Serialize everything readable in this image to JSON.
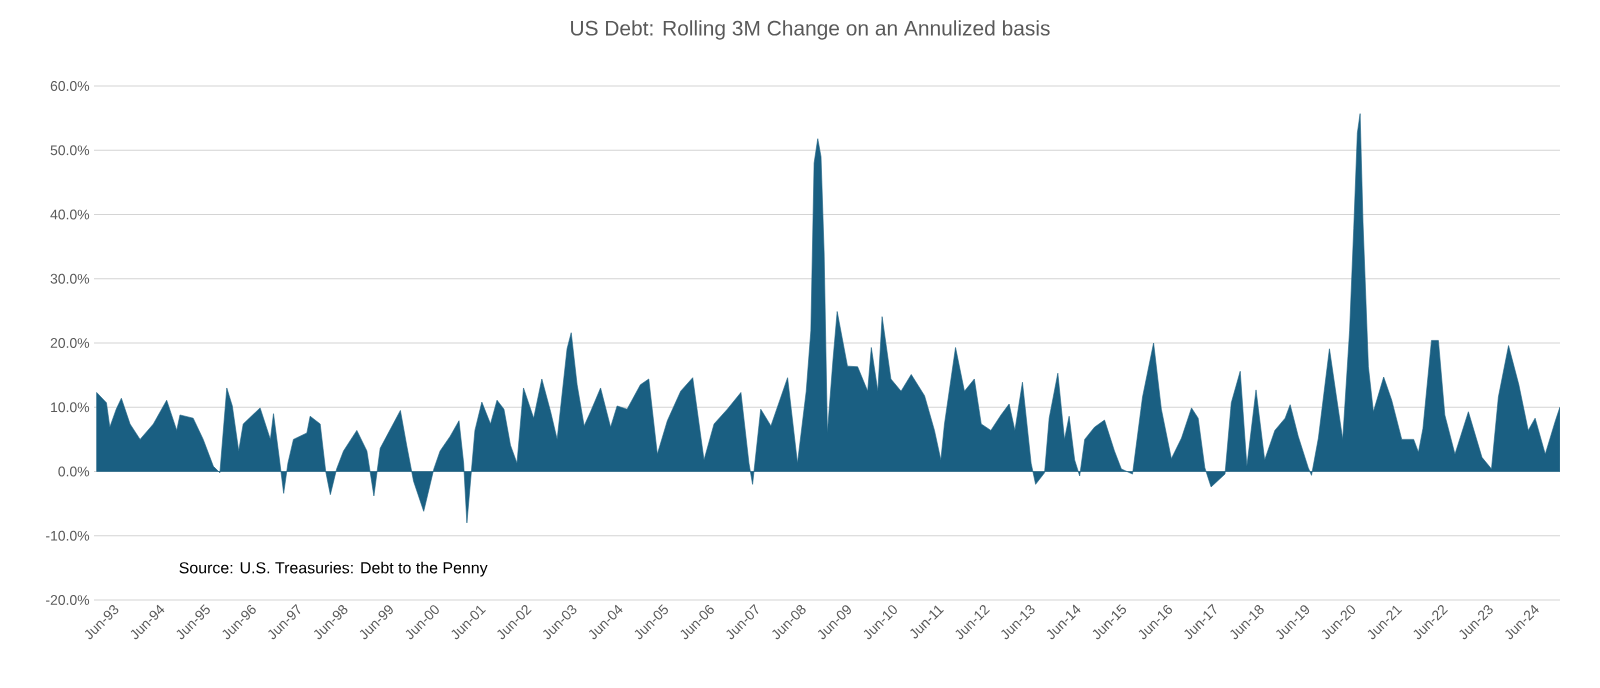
{
  "chart_data": {
    "type": "area",
    "title": "US Debt: Rolling 3M Change on an Annulized basis",
    "annotations": [
      "Source: U.S. Treasuries: Debt to the Penny"
    ],
    "color": "#1a5f82",
    "grid": "y",
    "xlim": [
      "1993-01-01",
      "2025-01-01"
    ],
    "ylim": [
      -20,
      60
    ],
    "xticks": [
      {
        "value": "1993-06-01",
        "label": "Jun-93"
      },
      {
        "value": "1994-06-01",
        "label": "Jun-94"
      },
      {
        "value": "1995-06-01",
        "label": "Jun-95"
      },
      {
        "value": "1996-06-01",
        "label": "Jun-96"
      },
      {
        "value": "1997-06-01",
        "label": "Jun-97"
      },
      {
        "value": "1998-06-01",
        "label": "Jun-98"
      },
      {
        "value": "1999-06-01",
        "label": "Jun-99"
      },
      {
        "value": "2000-06-01",
        "label": "Jun-00"
      },
      {
        "value": "2001-06-01",
        "label": "Jun-01"
      },
      {
        "value": "2002-06-01",
        "label": "Jun-02"
      },
      {
        "value": "2003-06-01",
        "label": "Jun-03"
      },
      {
        "value": "2004-06-01",
        "label": "Jun-04"
      },
      {
        "value": "2005-06-01",
        "label": "Jun-05"
      },
      {
        "value": "2006-06-01",
        "label": "Jun-06"
      },
      {
        "value": "2007-06-01",
        "label": "Jun-07"
      },
      {
        "value": "2008-06-01",
        "label": "Jun-08"
      },
      {
        "value": "2009-06-01",
        "label": "Jun-09"
      },
      {
        "value": "2010-06-01",
        "label": "Jun-10"
      },
      {
        "value": "2011-06-01",
        "label": "Jun-11"
      },
      {
        "value": "2012-06-01",
        "label": "Jun-12"
      },
      {
        "value": "2013-06-01",
        "label": "Jun-13"
      },
      {
        "value": "2014-06-01",
        "label": "Jun-14"
      },
      {
        "value": "2015-06-01",
        "label": "Jun-15"
      },
      {
        "value": "2016-06-01",
        "label": "Jun-16"
      },
      {
        "value": "2017-06-01",
        "label": "Jun-17"
      },
      {
        "value": "2018-06-01",
        "label": "Jun-18"
      },
      {
        "value": "2019-06-01",
        "label": "Jun-19"
      },
      {
        "value": "2020-06-01",
        "label": "Jun-20"
      },
      {
        "value": "2021-06-01",
        "label": "Jun-21"
      },
      {
        "value": "2022-06-01",
        "label": "Jun-22"
      },
      {
        "value": "2023-06-01",
        "label": "Jun-23"
      },
      {
        "value": "2024-06-01",
        "label": "Jun-24"
      }
    ],
    "yticks": [
      {
        "value": -20,
        "label": "-20.0%"
      },
      {
        "value": -10,
        "label": "-10.0%"
      },
      {
        "value": 0,
        "label": "0.0%"
      },
      {
        "value": 10,
        "label": "10.0%"
      },
      {
        "value": 20,
        "label": "20.0%"
      },
      {
        "value": 30,
        "label": "30.0%"
      },
      {
        "value": 40,
        "label": "40.0%"
      },
      {
        "value": 50,
        "label": "50.0%"
      },
      {
        "value": 60,
        "label": "60.0%"
      }
    ],
    "x": [
      "1993-01-22",
      "1993-04-10",
      "1993-05-07",
      "1993-06-27",
      "1993-08-07",
      "1993-10-15",
      "1994-01-03",
      "1994-04-19",
      "1994-08-03",
      "1994-10-22",
      "1994-11-17",
      "1995-03-02",
      "1995-05-21",
      "1995-08-10",
      "1995-10-01",
      "1995-11-25",
      "1996-01-08",
      "1996-02-28",
      "1996-04-04",
      "1996-08-17",
      "1996-11-07",
      "1996-12-02",
      "1997-01-15",
      "1997-02-21",
      "1997-03-27",
      "1997-05-10",
      "1997-08-25",
      "1997-09-20",
      "1997-12-09",
      "1998-01-22",
      "1998-02-28",
      "1998-04-19",
      "1998-06-13",
      "1998-09-27",
      "1998-12-16",
      "1999-02-10",
      "1999-04-01",
      "1999-09-09",
      "1999-10-29",
      "1999-12-23",
      "2000-03-13",
      "2000-06-02",
      "2000-07-22",
      "2000-10-11",
      "2000-12-20",
      "2001-01-26",
      "2001-02-21",
      "2001-04-26",
      "2001-06-20",
      "2001-08-28",
      "2001-10-19",
      "2001-12-13",
      "2002-02-03",
      "2002-03-27",
      "2002-05-18",
      "2002-08-07",
      "2002-10-11",
      "2002-12-20",
      "2003-02-10",
      "2003-04-30",
      "2003-06-02",
      "2003-07-19",
      "2003-09-13",
      "2003-11-03",
      "2004-01-22",
      "2004-04-11",
      "2004-06-02",
      "2004-08-21",
      "2004-12-05",
      "2005-02-10",
      "2005-04-19",
      "2005-07-08",
      "2005-10-22",
      "2006-01-26",
      "2006-04-26",
      "2006-07-15",
      "2006-10-29",
      "2007-02-14",
      "2007-04-19",
      "2007-05-18",
      "2007-07-22",
      "2007-10-11",
      "2008-02-21",
      "2008-05-10",
      "2008-07-19",
      "2008-08-25",
      "2008-09-20",
      "2008-10-19",
      "2008-11-14",
      "2008-12-09",
      "2009-01-04",
      "2009-02-17",
      "2009-03-23",
      "2009-06-13",
      "2009-09-02",
      "2009-11-21",
      "2009-12-20",
      "2010-02-10",
      "2010-03-16",
      "2010-05-25",
      "2010-08-14",
      "2010-11-03",
      "2011-02-17",
      "2011-05-07",
      "2011-06-27",
      "2011-07-26",
      "2011-10-22",
      "2012-01-01",
      "2012-03-20",
      "2012-05-14",
      "2012-07-30",
      "2012-10-19",
      "2012-12-23",
      "2013-02-07",
      "2013-04-08",
      "2013-06-16",
      "2013-07-22",
      "2013-10-01",
      "2013-11-07",
      "2014-01-15",
      "2014-03-09",
      "2014-04-15",
      "2014-05-29",
      "2014-07-08",
      "2014-08-17",
      "2014-11-03",
      "2015-01-22",
      "2015-04-11",
      "2015-06-05",
      "2015-09-02",
      "2015-11-21",
      "2016-02-17",
      "2016-04-19",
      "2016-07-08",
      "2016-09-27",
      "2016-12-16",
      "2017-02-07",
      "2017-04-01",
      "2017-05-21",
      "2017-09-09",
      "2017-10-29",
      "2018-01-08",
      "2018-03-02",
      "2018-05-14",
      "2018-07-22",
      "2018-10-11",
      "2019-01-01",
      "2019-02-10",
      "2019-04-15",
      "2019-07-04",
      "2019-07-30",
      "2019-09-23",
      "2019-12-20",
      "2020-02-14",
      "2020-04-04",
      "2020-05-29",
      "2020-07-01",
      "2020-07-30",
      "2020-08-21",
      "2020-09-13",
      "2020-10-26",
      "2020-12-05",
      "2021-02-25",
      "2021-04-30",
      "2021-07-19",
      "2021-10-22",
      "2021-11-29",
      "2022-01-04",
      "2022-03-13",
      "2022-05-07",
      "2022-06-27",
      "2022-09-16",
      "2023-01-01",
      "2023-04-19",
      "2023-07-04",
      "2023-08-28",
      "2023-11-17",
      "2024-02-07",
      "2024-04-22",
      "2024-06-16",
      "2024-09-05",
      "2024-11-25",
      "2024-12-31"
    ],
    "values": [
      12.3,
      10.7,
      6.9,
      9.7,
      11.4,
      7.4,
      5.0,
      7.4,
      11.1,
      6.4,
      8.8,
      8.3,
      5.0,
      0.8,
      -0.2,
      13.0,
      10.2,
      3.2,
      7.4,
      9.9,
      5.0,
      9.0,
      2.4,
      -3.4,
      1.3,
      5.0,
      6.0,
      8.6,
      7.4,
      0,
      -3.6,
      0.4,
      3.2,
      6.4,
      3.2,
      -3.8,
      3.6,
      9.5,
      4.1,
      -1.5,
      -6.2,
      0.4,
      3.2,
      5.5,
      7.9,
      1.3,
      -8,
      6.4,
      10.8,
      7.4,
      11.1,
      9.7,
      4.1,
      1.3,
      13.0,
      8.3,
      14.4,
      9.3,
      5.0,
      19.1,
      21.6,
      13.5,
      7.1,
      9.3,
      13.0,
      6.9,
      10.2,
      9.7,
      13.5,
      14.4,
      2.7,
      7.9,
      12.5,
      14.6,
      1.8,
      7.4,
      9.7,
      12.3,
      1.3,
      -2.0,
      9.7,
      7.1,
      14.6,
      1.3,
      12.5,
      21.9,
      48,
      51.8,
      49,
      34,
      6.0,
      17.2,
      24.9,
      16.4,
      16.3,
      12.5,
      19.3,
      12.5,
      24.1,
      14.4,
      12.5,
      15.1,
      11.8,
      6.4,
      1.8,
      7.4,
      19.3,
      12.5,
      14.4,
      7.4,
      6.4,
      8.8,
      10.5,
      6.4,
      13.9,
      1.3,
      -2.0,
      -0.2,
      8.3,
      15.3,
      5.0,
      8.6,
      1.8,
      -0.7,
      5.0,
      6.9,
      8.0,
      3.2,
      0.4,
      -0.4,
      11.6,
      20.0,
      9.7,
      2.0,
      5.2,
      9.9,
      8.3,
      0.6,
      -2.4,
      -0.4,
      10.7,
      15.6,
      0.8,
      12.7,
      1.8,
      6.4,
      8.3,
      10.4,
      5.5,
      0.6,
      -0.6,
      5.2,
      19.1,
      11.6,
      5.0,
      21.9,
      37.8,
      52.7,
      55.7,
      38.7,
      16.3,
      9.3,
      14.7,
      11.1,
      5.0,
      5.0,
      3.0,
      6.7,
      20.4,
      20.4,
      8.8,
      2.7,
      9.3,
      2.2,
      0.4,
      11.6,
      19.6,
      13.5,
      6.4,
      8.3,
      2.7,
      7.9,
      10.0
    ]
  }
}
